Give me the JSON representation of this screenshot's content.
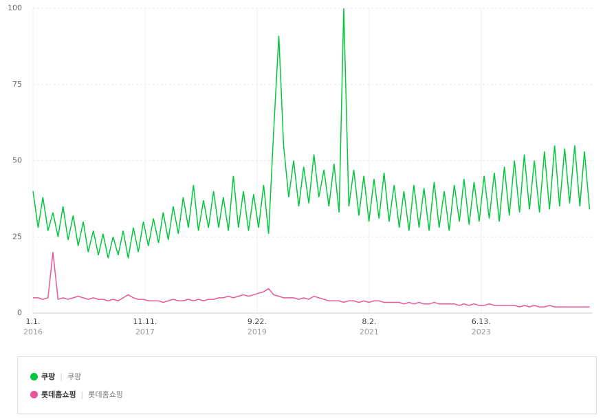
{
  "chart_data": {
    "type": "line",
    "x": [
      "2016-01",
      "2016-02",
      "2016-03",
      "2016-04",
      "2016-05",
      "2016-06",
      "2016-07",
      "2016-08",
      "2016-09",
      "2016-10",
      "2016-11",
      "2016-12",
      "2017-01",
      "2017-02",
      "2017-03",
      "2017-04",
      "2017-05",
      "2017-06",
      "2017-07",
      "2017-08",
      "2017-09",
      "2017-10",
      "2017-11",
      "2017-12",
      "2018-01",
      "2018-02",
      "2018-03",
      "2018-04",
      "2018-05",
      "2018-06",
      "2018-07",
      "2018-08",
      "2018-09",
      "2018-10",
      "2018-11",
      "2018-12",
      "2019-01",
      "2019-02",
      "2019-03",
      "2019-04",
      "2019-05",
      "2019-06",
      "2019-07",
      "2019-08",
      "2019-09",
      "2019-10",
      "2019-11",
      "2019-12",
      "2020-01",
      "2020-02",
      "2020-03",
      "2020-04",
      "2020-05",
      "2020-06",
      "2020-07",
      "2020-08",
      "2020-09",
      "2020-10",
      "2020-11",
      "2020-12",
      "2021-01",
      "2021-02",
      "2021-03",
      "2021-04",
      "2021-05",
      "2021-06",
      "2021-07",
      "2021-08",
      "2021-09",
      "2021-10",
      "2021-11",
      "2021-12",
      "2022-01",
      "2022-02",
      "2022-03",
      "2022-04",
      "2022-05",
      "2022-06",
      "2022-07",
      "2022-08",
      "2022-09",
      "2022-10",
      "2022-11",
      "2022-12",
      "2023-01",
      "2023-02",
      "2023-03",
      "2023-04",
      "2023-05",
      "2023-06",
      "2023-07",
      "2023-08",
      "2023-09",
      "2023-10",
      "2023-11",
      "2023-12",
      "2024-01",
      "2024-02",
      "2024-03",
      "2024-04",
      "2024-05",
      "2024-06",
      "2024-07",
      "2024-08",
      "2024-09",
      "2024-10",
      "2024-11",
      "2024-12",
      "2025-01",
      "2025-02",
      "2025-03",
      "2025-04"
    ],
    "xlim": [
      "2016-01-01",
      "2025-04-20"
    ],
    "xticks": [
      {
        "value": "2016-01-01",
        "label": "1.1.",
        "year": "2016"
      },
      {
        "value": "2017-11-11",
        "label": "11.11.",
        "year": "2017"
      },
      {
        "value": "2019-09-22",
        "label": "9.22.",
        "year": "2019"
      },
      {
        "value": "2021-08-02",
        "label": "8.2.",
        "year": "2021"
      },
      {
        "value": "2023-06-13",
        "label": "6.13.",
        "year": "2023"
      }
    ],
    "ylim": [
      0,
      100
    ],
    "yticks": [
      0,
      25,
      50,
      75,
      100
    ],
    "grid": true,
    "series": [
      {
        "name": "쿠팡",
        "keywords": "쿠팡",
        "color": "#00c73c",
        "values": [
          40,
          28,
          38,
          27,
          33,
          25,
          35,
          24,
          32,
          22,
          30,
          20,
          27,
          19,
          26,
          18,
          25,
          19,
          27,
          18,
          28,
          20,
          30,
          22,
          31,
          23,
          33,
          24,
          35,
          26,
          38,
          28,
          42,
          27,
          37,
          28,
          40,
          28,
          38,
          27,
          45,
          28,
          40,
          27,
          39,
          28,
          42,
          26,
          60,
          91,
          55,
          38,
          50,
          35,
          48,
          36,
          52,
          38,
          47,
          35,
          49,
          33,
          100,
          35,
          47,
          32,
          45,
          30,
          44,
          31,
          46,
          30,
          42,
          28,
          40,
          27,
          42,
          28,
          41,
          27,
          43,
          28,
          40,
          27,
          42,
          30,
          44,
          29,
          43,
          30,
          45,
          31,
          46,
          30,
          48,
          32,
          50,
          33,
          52,
          34,
          50,
          33,
          53,
          34,
          55,
          35,
          54,
          36,
          55,
          35,
          53,
          34
        ]
      },
      {
        "name": "롯데홈쇼핑",
        "keywords": "롯데홈쇼핑",
        "color": "#e8559a",
        "values": [
          5,
          5,
          4.5,
          5,
          20,
          4.5,
          5,
          4.5,
          5,
          5.5,
          5,
          4.5,
          5,
          4.5,
          4.5,
          4,
          4.5,
          4,
          5,
          6,
          5,
          4.5,
          4.5,
          4,
          4,
          4,
          3.5,
          4,
          4.5,
          4,
          4,
          4.5,
          4,
          4.5,
          4,
          4.5,
          4.5,
          5,
          5,
          5.5,
          5,
          5.5,
          6,
          5.5,
          6,
          6.5,
          7,
          8,
          6,
          5.5,
          5,
          5,
          5,
          4.5,
          5,
          4.5,
          5.5,
          5,
          4.5,
          4,
          4,
          4,
          3.5,
          4,
          4,
          3.5,
          4,
          3.5,
          4,
          4,
          3.5,
          3.5,
          3.5,
          3.5,
          3,
          3.5,
          3,
          3.5,
          3,
          3,
          3.5,
          3,
          3,
          3,
          3,
          2.5,
          3,
          2.5,
          3,
          2.5,
          2.5,
          3,
          2.5,
          2.5,
          2.5,
          2.5,
          2.5,
          2,
          2.5,
          2,
          2.5,
          2,
          2,
          2.5,
          2,
          2,
          2,
          2,
          2,
          2,
          2,
          2
        ]
      }
    ]
  }
}
